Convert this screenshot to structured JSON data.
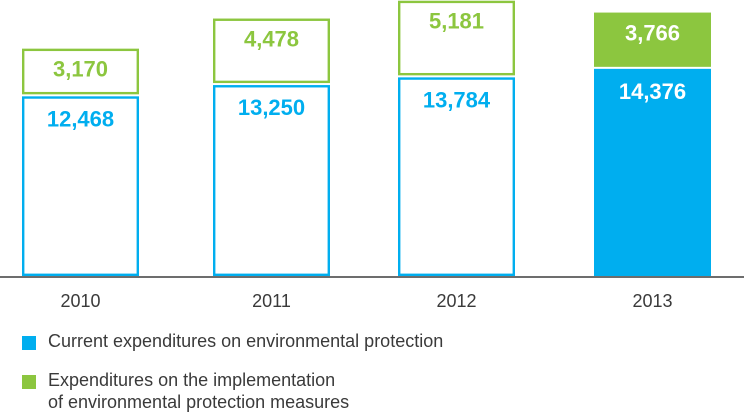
{
  "chart_data": {
    "type": "bar",
    "stacked": true,
    "categories": [
      "2010",
      "2011",
      "2012",
      "2013"
    ],
    "series": [
      {
        "name": "Current expenditures on environmental protection",
        "values": [
          12468,
          13250,
          13784,
          14376
        ],
        "color": "#00aeef"
      },
      {
        "name": "Expenditures on the implementation\nof environmental protection measures",
        "values": [
          3170,
          4478,
          5181,
          3766
        ],
        "color": "#8cc63f"
      }
    ],
    "value_labels": {
      "current": [
        "12,468",
        "13,250",
        "13,784",
        "14,376"
      ],
      "implementation": [
        "3,170",
        "4,478",
        "5,181",
        "3,766"
      ]
    },
    "highlighted_category": "2013",
    "legend_position": "bottom-left",
    "grid": false,
    "title": "",
    "xlabel": "",
    "ylabel": ""
  }
}
